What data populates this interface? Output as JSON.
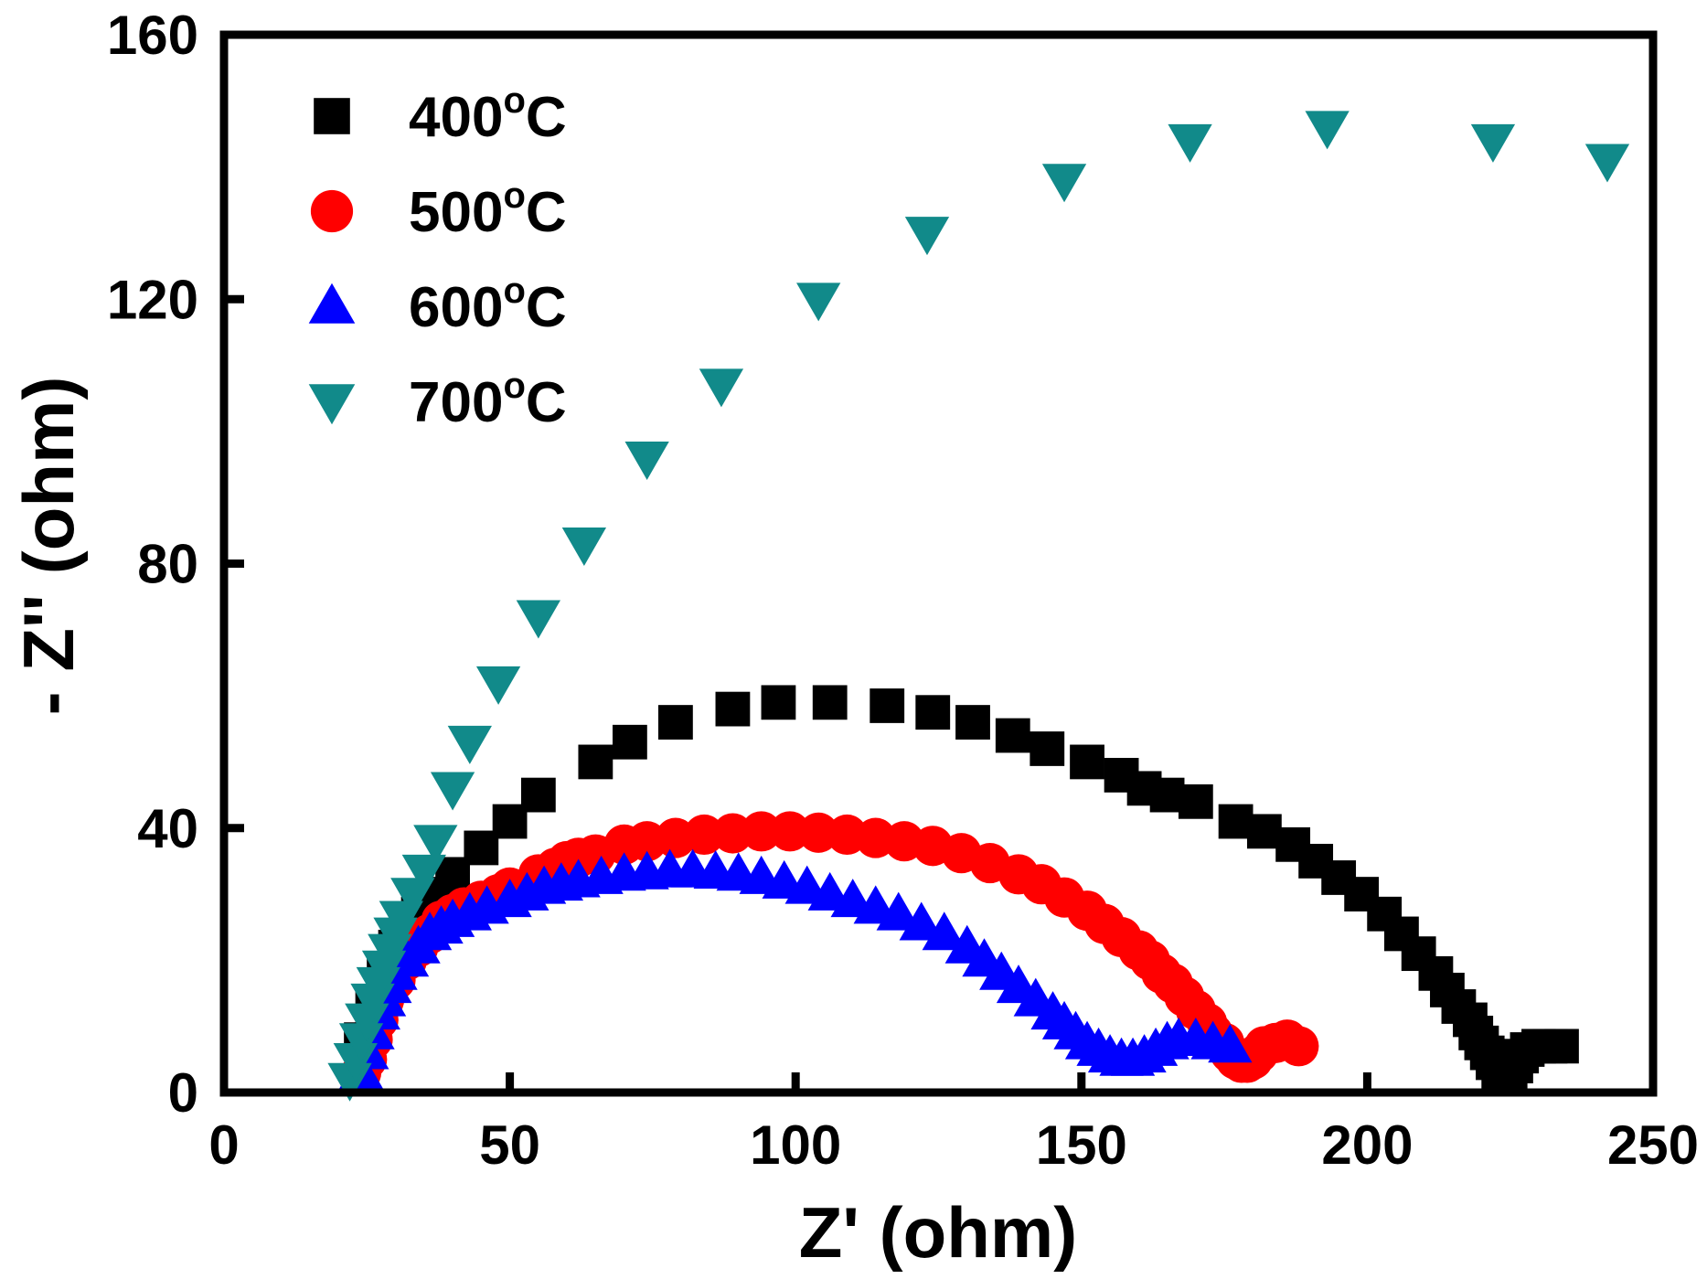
{
  "chart_data": {
    "type": "scatter",
    "title": "",
    "xlabel": "Z' (ohm)",
    "ylabel": "- Z'' (ohm)",
    "xlim": [
      0,
      250
    ],
    "ylim": [
      0,
      160
    ],
    "xticks": [
      0,
      50,
      100,
      150,
      200,
      250
    ],
    "yticks": [
      0,
      40,
      80,
      120,
      160
    ],
    "xtick_labels": [
      "0",
      "50",
      "100",
      "150",
      "200",
      "250"
    ],
    "ytick_labels": [
      "0",
      "40",
      "80",
      "120",
      "160"
    ],
    "grid": false,
    "legend_position": "top-left",
    "series": [
      {
        "name": "400°C",
        "label_main": "400",
        "label_sup": "o",
        "label_unit": "C",
        "marker": "square",
        "color": "#000000",
        "x": [
          24,
          26,
          28,
          30,
          32,
          34,
          37,
          40,
          45,
          50,
          55,
          65,
          71,
          79,
          89,
          97,
          106,
          116,
          124,
          131,
          138,
          144,
          151,
          157,
          161,
          165,
          170,
          177,
          182,
          187,
          191,
          195,
          199,
          203,
          206,
          209,
          212,
          214,
          216,
          218,
          219,
          220,
          221,
          222,
          223,
          224,
          225,
          226,
          227,
          228,
          230,
          232,
          234
        ],
        "y": [
          8,
          13,
          18,
          22,
          25,
          27,
          30,
          33,
          37,
          41,
          45,
          50,
          53,
          56,
          58,
          59,
          59,
          58.5,
          57.5,
          56,
          54,
          52,
          50,
          48,
          46,
          45,
          44,
          41,
          39.5,
          37.5,
          35,
          32.5,
          30,
          27,
          24,
          21,
          18,
          15.5,
          13,
          11,
          9,
          7.5,
          6,
          4.5,
          3,
          2,
          2.5,
          4,
          5.5,
          6.5,
          7,
          7,
          7
        ]
      },
      {
        "name": "500°C",
        "label_main": "500",
        "label_sup": "o",
        "label_unit": "C",
        "marker": "circle",
        "color": "#ff0000",
        "x": [
          24,
          25,
          26,
          27,
          28,
          30,
          32,
          34,
          36,
          38,
          40,
          42,
          45,
          48,
          50,
          55,
          58,
          60,
          62,
          65,
          70,
          74,
          79,
          84,
          89,
          94,
          99,
          104,
          109,
          114,
          119,
          124,
          129,
          134,
          139,
          143,
          147,
          151,
          154,
          157,
          160,
          162,
          164,
          166,
          168,
          170,
          172,
          173,
          175,
          176,
          177,
          178,
          179,
          180,
          181,
          182,
          184,
          186,
          188
        ],
        "y": [
          3,
          5,
          8,
          11,
          14,
          17,
          20,
          22,
          24,
          26,
          27,
          28,
          29,
          30,
          31,
          33,
          34,
          35,
          35.5,
          36,
          37.5,
          38,
          38.5,
          39,
          39.2,
          39.5,
          39.5,
          39.3,
          39,
          38.5,
          38,
          37.3,
          36.2,
          34.7,
          33,
          31.5,
          29.5,
          27.5,
          25.5,
          23.5,
          21.5,
          20,
          18,
          16.5,
          14.5,
          12.5,
          10.5,
          9,
          7.5,
          6,
          5,
          4.5,
          4.5,
          5,
          6,
          7,
          7.5,
          8,
          7
        ]
      },
      {
        "name": "600°C",
        "label_main": "600",
        "label_sup": "o",
        "label_unit": "C",
        "marker": "triangle-up",
        "color": "#0000ff",
        "x": [
          24,
          25,
          26,
          27,
          28,
          29,
          30,
          32,
          34,
          36,
          38,
          40,
          43,
          46,
          50,
          53,
          56,
          59,
          62,
          66,
          70,
          74,
          78,
          82,
          86,
          90,
          94,
          98,
          102,
          106,
          110,
          114,
          118,
          122,
          126,
          130,
          133,
          136,
          139,
          142,
          145,
          147,
          149,
          151,
          153,
          155,
          157,
          159,
          161,
          163,
          165,
          167,
          170,
          173,
          176
        ],
        "y": [
          3,
          6,
          9,
          12,
          14,
          16,
          18,
          20,
          22,
          24,
          25,
          26,
          27,
          28,
          29,
          30,
          31,
          31.5,
          32,
          32.5,
          33,
          33.2,
          33.5,
          33.5,
          33.3,
          33,
          32.5,
          31.8,
          31,
          30,
          29,
          28,
          27,
          25.5,
          24,
          22,
          20,
          18,
          16,
          14,
          12,
          10.5,
          9,
          7.5,
          6.5,
          5.5,
          5,
          5,
          5.5,
          6.5,
          7.5,
          8,
          8,
          7.5,
          7
        ]
      },
      {
        "name": "700°C",
        "label_main": "700",
        "label_sup": "o",
        "label_unit": "C",
        "marker": "triangle-down",
        "color": "#118a8a",
        "x": [
          22,
          23,
          24,
          25,
          26,
          27,
          28,
          29,
          30,
          31,
          33,
          35,
          37,
          40,
          43,
          48,
          55,
          63,
          74,
          87,
          104,
          123,
          147,
          169,
          193,
          222,
          242
        ],
        "y": [
          2,
          5,
          8,
          11,
          14,
          16.5,
          19,
          21.5,
          24,
          26.5,
          30,
          33.5,
          38,
          46,
          53,
          62,
          72,
          83,
          96,
          107,
          120,
          130,
          138,
          144,
          146,
          144,
          141
        ]
      }
    ]
  }
}
